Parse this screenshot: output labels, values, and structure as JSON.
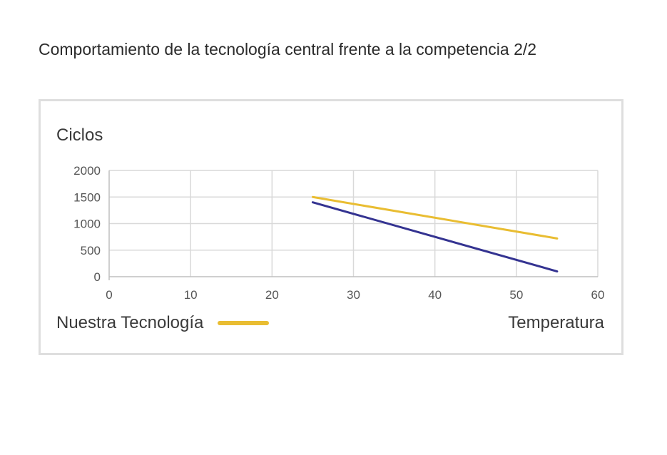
{
  "page": {
    "title": "Comportamiento de la tecnología central frente a la competencia 2/2"
  },
  "chart_data": {
    "type": "line",
    "title": "",
    "xlabel": "Temperatura",
    "ylabel": "Ciclos",
    "xlim": [
      0,
      60
    ],
    "ylim": [
      0,
      2000
    ],
    "x_ticks": [
      "0",
      "10",
      "20",
      "30",
      "40",
      "50",
      "60"
    ],
    "y_ticks": [
      "0",
      "500",
      "1000",
      "1500",
      "2000"
    ],
    "grid": true,
    "legend_position": "bottom-left",
    "series": [
      {
        "name": "Nuestra Tecnología",
        "color": "#e9bd32",
        "x": [
          25,
          55
        ],
        "y": [
          1500,
          720
        ]
      },
      {
        "color": "#343391",
        "x": [
          25,
          55
        ],
        "y": [
          1400,
          100
        ]
      }
    ]
  }
}
